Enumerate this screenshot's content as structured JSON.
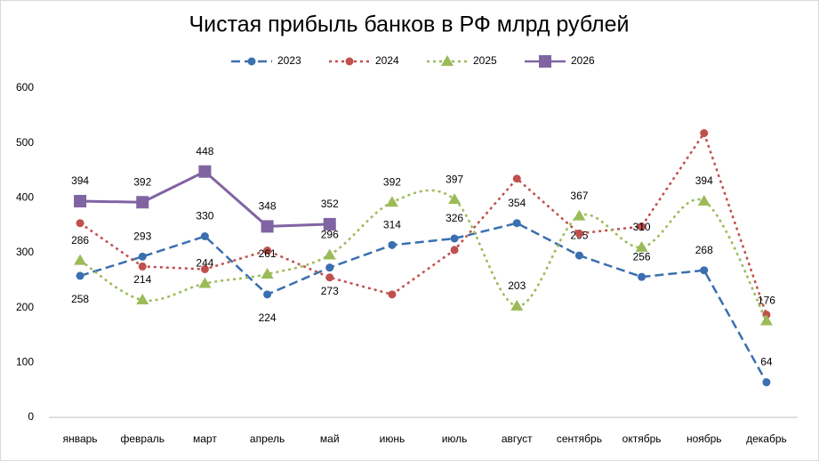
{
  "chart_data": {
    "type": "line",
    "title": "Чистая прибыль банков в РФ млрд рублей",
    "categories": [
      "январь",
      "февраль",
      "март",
      "апрель",
      "май",
      "июнь",
      "июль",
      "август",
      "сентябрь",
      "октябрь",
      "ноябрь",
      "декабрь"
    ],
    "series": [
      {
        "name": "2023",
        "color": "#3a6fb0",
        "dash": "dashed",
        "marker": "circle",
        "smooth": false,
        "data_labels": true,
        "values": [
          258,
          293,
          330,
          224,
          273,
          314,
          326,
          354,
          295,
          256,
          268,
          64
        ]
      },
      {
        "name": "2024",
        "color": "#c0504d",
        "dash": "dotted",
        "marker": "circle",
        "smooth": false,
        "data_labels": false,
        "values": [
          354,
          275,
          270,
          304,
          255,
          224,
          305,
          435,
          335,
          348,
          518,
          187
        ]
      },
      {
        "name": "2025",
        "color": "#9bbb59",
        "dash": "dotted",
        "marker": "triangle",
        "smooth": true,
        "data_labels": true,
        "values": [
          286,
          214,
          244,
          261,
          296,
          392,
          397,
          203,
          367,
          310,
          394,
          176
        ]
      },
      {
        "name": "2026",
        "color": "#8064a2",
        "dash": "solid",
        "marker": "square",
        "smooth": false,
        "data_labels": true,
        "values": [
          394,
          392,
          448,
          348,
          352,
          null,
          null,
          null,
          null,
          null,
          null,
          null
        ]
      }
    ],
    "ylim": [
      0,
      600
    ],
    "yticks": [
      0,
      100,
      200,
      300,
      400,
      500,
      600
    ],
    "grid": false,
    "legend": "top"
  }
}
